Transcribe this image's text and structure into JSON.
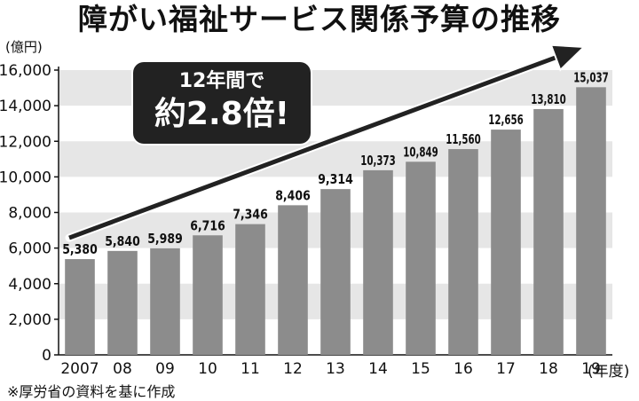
{
  "chart_data": {
    "type": "bar",
    "title": "障がい福祉サービス関係予算の推移",
    "ylabel": "(億円)",
    "xlabel": "(年度)",
    "categories": [
      "2007",
      "08",
      "09",
      "10",
      "11",
      "12",
      "13",
      "14",
      "15",
      "16",
      "17",
      "18",
      "19"
    ],
    "values": [
      5380,
      5840,
      5989,
      6716,
      7346,
      8406,
      9314,
      10373,
      10849,
      11560,
      12656,
      13810,
      15037
    ],
    "value_labels": [
      "5,380",
      "5,840",
      "5,989",
      "6,716",
      "7,346",
      "8,406",
      "9,314",
      "10,373",
      "10,849",
      "11,560",
      "12,656",
      "13,810",
      "15,037"
    ],
    "ylim": [
      0,
      16000
    ],
    "yticks": [
      0,
      2000,
      4000,
      6000,
      8000,
      10000,
      12000,
      14000,
      16000
    ],
    "ytick_labels": [
      "0",
      "2,000",
      "4,000",
      "6,000",
      "8,000",
      "10,000",
      "12,000",
      "14,000",
      "16,000"
    ],
    "grid": "alternating horizontal bands",
    "bar_color": "#8c8c8c",
    "band_color": "#e6e6e6",
    "annotation": {
      "line1": "12年間で",
      "line2": "約2.8倍!"
    }
  },
  "source_note": "※厚労省の資料を基に作成"
}
